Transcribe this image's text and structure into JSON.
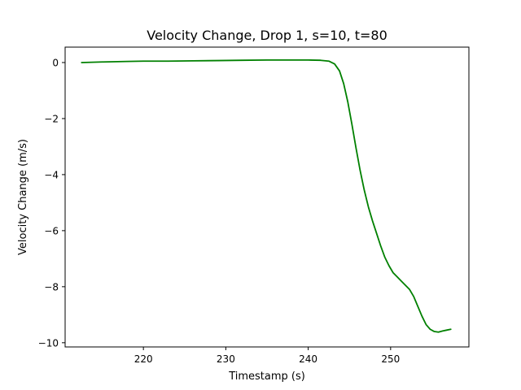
{
  "chart_data": {
    "type": "line",
    "title": "Velocity Change, Drop 1, s=10, t=80",
    "xlabel": "Timestamp (s)",
    "ylabel": "Velocity Change (m/s)",
    "xlim": [
      210.5,
      259.5
    ],
    "ylim": [
      -10.15,
      0.55
    ],
    "xticks": [
      220,
      230,
      240,
      250
    ],
    "xtick_labels": [
      "220",
      "230",
      "240",
      "250"
    ],
    "yticks": [
      0,
      -2,
      -4,
      -6,
      -8,
      -10
    ],
    "ytick_labels": [
      "0",
      "−2",
      "−4",
      "−6",
      "−8",
      "−10"
    ],
    "grid": false,
    "series": [
      {
        "color": "#008000",
        "x": [
          212.5,
          215,
          218,
          220,
          223,
          226,
          229,
          232,
          235,
          238,
          240,
          241.5,
          242.5,
          243.2,
          243.8,
          244.3,
          244.8,
          245.3,
          245.8,
          246.3,
          246.8,
          247.3,
          247.8,
          248.3,
          248.8,
          249.3,
          249.8,
          250.3,
          250.8,
          251.3,
          251.8,
          252.3,
          252.8,
          253.3,
          253.8,
          254.3,
          254.8,
          255.3,
          255.8,
          256.3,
          256.8,
          257.3
        ],
        "y": [
          0.0,
          0.02,
          0.04,
          0.05,
          0.05,
          0.06,
          0.07,
          0.08,
          0.09,
          0.09,
          0.09,
          0.08,
          0.05,
          -0.05,
          -0.3,
          -0.75,
          -1.4,
          -2.2,
          -3.05,
          -3.85,
          -4.55,
          -5.15,
          -5.65,
          -6.1,
          -6.55,
          -6.95,
          -7.25,
          -7.5,
          -7.65,
          -7.8,
          -7.95,
          -8.1,
          -8.35,
          -8.7,
          -9.05,
          -9.35,
          -9.52,
          -9.6,
          -9.62,
          -9.58,
          -9.55,
          -9.52
        ]
      }
    ]
  }
}
